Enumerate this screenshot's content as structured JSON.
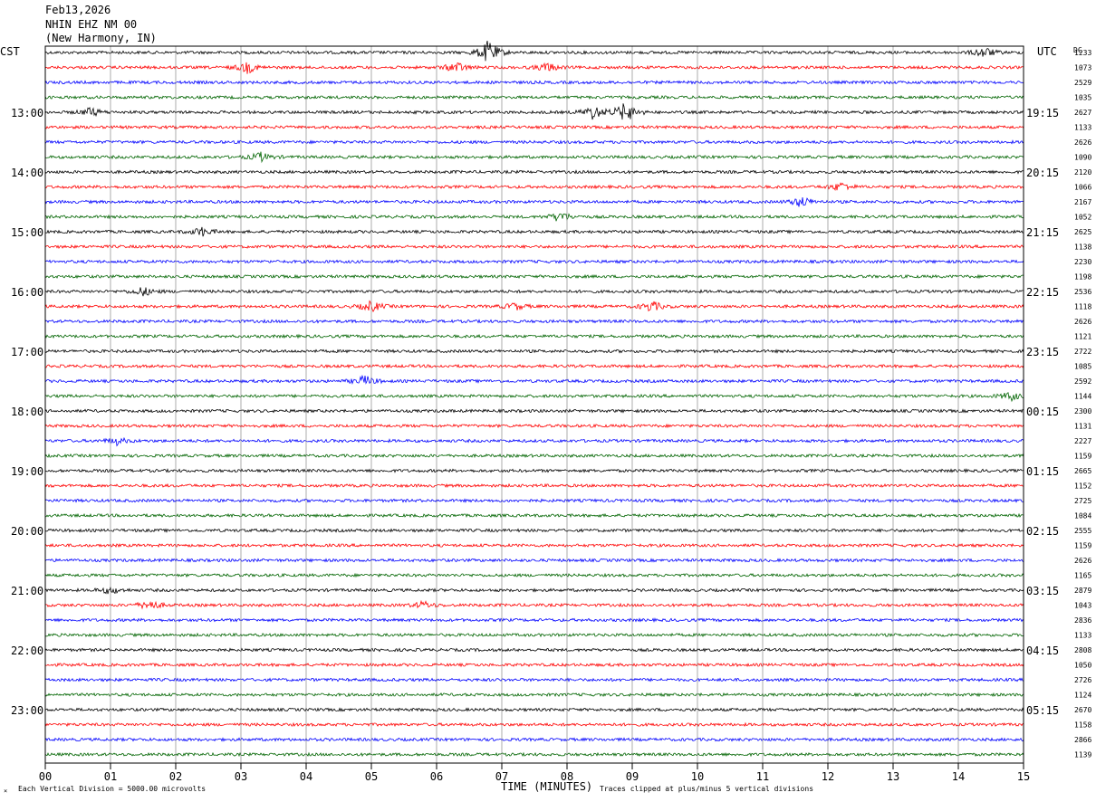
{
  "header": {
    "date": "Feb13,2026",
    "station": "NHIN EHZ NM 00",
    "location": "(New Harmony, IN)"
  },
  "left_zone": "CST",
  "right_zone": "UTC",
  "dc_label": "DC",
  "footer": {
    "scale_note": "Each Vertical Division = 5000.00 microvolts",
    "x_title": "TIME (MINUTES)",
    "clip_note": "Traces clipped at plus/minus 5 vertical divisions"
  },
  "colors": {
    "trace_cycle": [
      "#000000",
      "#ff0000",
      "#0000ff",
      "#006400"
    ],
    "grid": "#888888",
    "frame": "#000000"
  },
  "chart_data": {
    "type": "line",
    "title": "",
    "xlabel": "TIME (MINUTES)",
    "ylabel": "",
    "xlim": [
      0,
      15
    ],
    "x_ticks": [
      "00",
      "01",
      "02",
      "03",
      "04",
      "05",
      "06",
      "07",
      "08",
      "09",
      "10",
      "11",
      "12",
      "13",
      "14",
      "15"
    ],
    "lines_per_hour": 4,
    "minutes_per_line": 15,
    "cst_hour_labels": [
      "13:00",
      "14:00",
      "15:00",
      "16:00",
      "17:00",
      "18:00",
      "19:00",
      "20:00",
      "21:00",
      "22:00",
      "23:00"
    ],
    "utc_hour_labels": [
      "19:15",
      "20:15",
      "21:15",
      "22:15",
      "23:15",
      "00:15",
      "01:15",
      "02:15",
      "03:15",
      "04:15",
      "05:15"
    ],
    "dc_offsets": [
      "1233",
      "1073",
      "2529",
      "1035",
      "2627",
      "1133",
      "2626",
      "1090",
      "2120",
      "1066",
      "2167",
      "1052",
      "2625",
      "1138",
      "2230",
      "1198",
      "2536",
      "1118",
      "2626",
      "1121",
      "2722",
      "1085",
      "2592",
      "1144",
      "2300",
      "1131",
      "2227",
      "1159",
      "2665",
      "1152",
      "2725",
      "1084",
      "2555",
      "1159",
      "2626",
      "1165",
      "2879",
      "1043",
      "2836",
      "1133",
      "2808",
      "1050",
      "2726",
      "1124",
      "2670",
      "1158",
      "2866",
      "1139"
    ],
    "events": [
      {
        "line": 0,
        "minute": 6.8,
        "amp": 14
      },
      {
        "line": 0,
        "minute": 14.4,
        "amp": 6
      },
      {
        "line": 1,
        "minute": 3.1,
        "amp": 6
      },
      {
        "line": 1,
        "minute": 6.3,
        "amp": 6
      },
      {
        "line": 1,
        "minute": 7.7,
        "amp": 5
      },
      {
        "line": 4,
        "minute": 8.9,
        "amp": 12
      },
      {
        "line": 4,
        "minute": 8.4,
        "amp": 8
      },
      {
        "line": 4,
        "minute": 0.7,
        "amp": 5
      },
      {
        "line": 7,
        "minute": 3.3,
        "amp": 5
      },
      {
        "line": 9,
        "minute": 12.2,
        "amp": 5
      },
      {
        "line": 10,
        "minute": 11.6,
        "amp": 6
      },
      {
        "line": 11,
        "minute": 7.9,
        "amp": 6
      },
      {
        "line": 12,
        "minute": 2.4,
        "amp": 5
      },
      {
        "line": 16,
        "minute": 1.5,
        "amp": 5
      },
      {
        "line": 17,
        "minute": 5.0,
        "amp": 6
      },
      {
        "line": 17,
        "minute": 9.3,
        "amp": 6
      },
      {
        "line": 17,
        "minute": 7.2,
        "amp": 4
      },
      {
        "line": 22,
        "minute": 4.9,
        "amp": 6
      },
      {
        "line": 23,
        "minute": 14.8,
        "amp": 5
      },
      {
        "line": 26,
        "minute": 1.1,
        "amp": 4
      },
      {
        "line": 36,
        "minute": 1.0,
        "amp": 4
      },
      {
        "line": 37,
        "minute": 1.6,
        "amp": 6
      },
      {
        "line": 37,
        "minute": 5.8,
        "amp": 4
      }
    ]
  }
}
